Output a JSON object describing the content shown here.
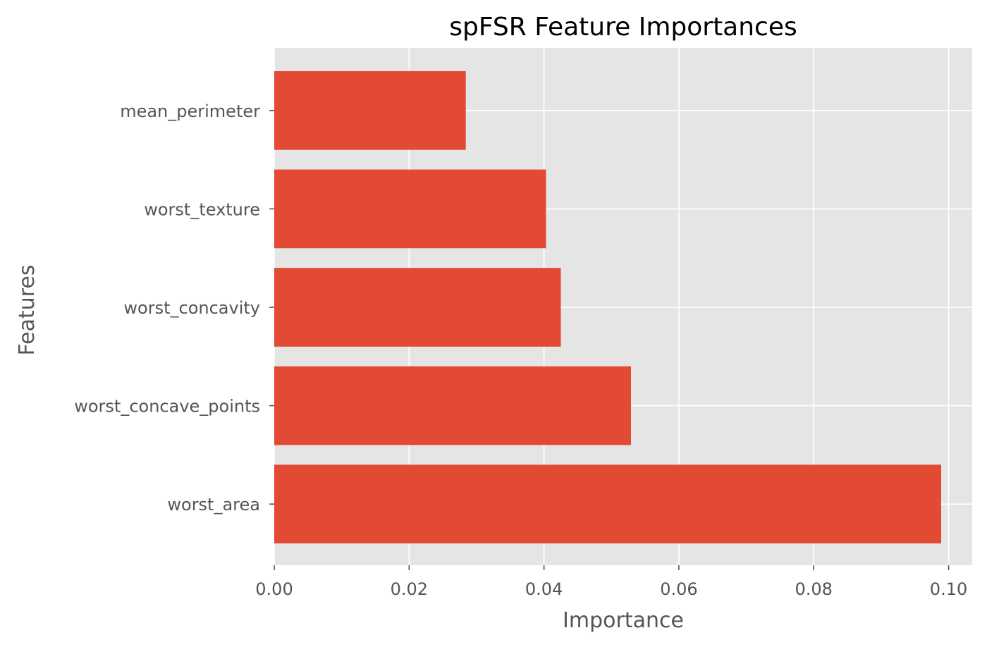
{
  "chart_data": {
    "type": "bar",
    "orientation": "horizontal",
    "title": "spFSR Feature Importances",
    "xlabel": "Importance",
    "ylabel": "Features",
    "categories": [
      "worst_area",
      "worst_concave_points",
      "worst_concavity",
      "worst_texture",
      "mean_perimeter"
    ],
    "values": [
      0.0989,
      0.0529,
      0.0425,
      0.0403,
      0.0284
    ],
    "xlim": [
      0,
      0.1035
    ],
    "xticks": [
      0.0,
      0.02,
      0.04,
      0.06,
      0.08,
      0.1
    ],
    "xtick_labels": [
      "0.00",
      "0.02",
      "0.04",
      "0.06",
      "0.08",
      "0.10"
    ],
    "grid": true,
    "colors": {
      "bar": "#E24A33",
      "plot_background": "#E5E5E5",
      "grid": "#FFFFFF",
      "text": "#555555"
    }
  }
}
